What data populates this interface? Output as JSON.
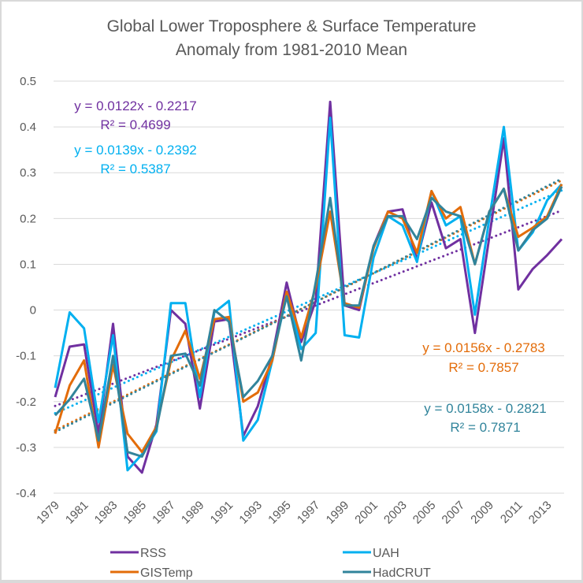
{
  "chart_data": {
    "type": "line",
    "title": [
      "Global Lower Troposphere & Surface Temperature",
      "Anomaly from 1981-2010 Mean"
    ],
    "xlabel": "",
    "ylabel": "",
    "ylim": [
      -0.4,
      0.5
    ],
    "yticks": [
      0.5,
      0.4,
      0.3,
      0.2,
      0.1,
      0,
      -0.1,
      -0.2,
      -0.3,
      -0.4
    ],
    "ytick_labels": [
      "0.5",
      "0.4",
      "0.3",
      "0.2",
      "0.1",
      "0",
      "-0.1",
      "-0.2",
      "-0.3",
      "-0.4"
    ],
    "x": [
      1979,
      1980,
      1981,
      1982,
      1983,
      1984,
      1985,
      1986,
      1987,
      1988,
      1989,
      1990,
      1991,
      1992,
      1993,
      1994,
      1995,
      1996,
      1997,
      1998,
      1999,
      2000,
      2001,
      2002,
      2003,
      2004,
      2005,
      2006,
      2007,
      2008,
      2009,
      2010,
      2011,
      2012,
      2013,
      2014
    ],
    "xtick_labels": [
      "1979",
      "1981",
      "1983",
      "1985",
      "1987",
      "1989",
      "1991",
      "1993",
      "1995",
      "1997",
      "1999",
      "2001",
      "2003",
      "2005",
      "2007",
      "2009",
      "2011",
      "2013"
    ],
    "grid": true,
    "legend_position": "bottom",
    "series": [
      {
        "name": "RSS",
        "color": "#7030a0",
        "values": [
          -0.19,
          -0.08,
          -0.075,
          -0.27,
          -0.03,
          -0.32,
          -0.355,
          -0.25,
          0.0,
          -0.03,
          -0.215,
          -0.025,
          -0.02,
          -0.275,
          -0.21,
          -0.1,
          0.06,
          -0.07,
          0.02,
          0.455,
          0.01,
          0.0,
          0.14,
          0.215,
          0.22,
          0.11,
          0.235,
          0.135,
          0.155,
          -0.05,
          0.16,
          0.375,
          0.045,
          0.09,
          0.12,
          0.155
        ],
        "trendline": {
          "slope": 0.0122,
          "intercept": -0.2217,
          "r2": 0.4699,
          "equation": "y = 0.0122x - 0.2217",
          "r2_label": "R² = 0.4699"
        }
      },
      {
        "name": "UAH",
        "color": "#00b0f0",
        "values": [
          -0.17,
          -0.005,
          -0.04,
          -0.245,
          -0.055,
          -0.35,
          -0.315,
          -0.265,
          0.015,
          0.015,
          -0.19,
          -0.005,
          0.02,
          -0.285,
          -0.24,
          -0.11,
          0.035,
          -0.085,
          -0.05,
          0.42,
          -0.055,
          -0.06,
          0.115,
          0.205,
          0.185,
          0.105,
          0.26,
          0.185,
          0.205,
          -0.01,
          0.2,
          0.4,
          0.13,
          0.17,
          0.24,
          0.275
        ],
        "trendline": {
          "slope": 0.0139,
          "intercept": -0.2392,
          "r2": 0.5387,
          "equation": "y = 0.0139x - 0.2392",
          "r2_label": "R² = 0.5387"
        }
      },
      {
        "name": "GISTemp",
        "color": "#e36c09",
        "values": [
          -0.27,
          -0.165,
          -0.11,
          -0.3,
          -0.12,
          -0.27,
          -0.31,
          -0.255,
          -0.11,
          -0.045,
          -0.15,
          -0.02,
          -0.015,
          -0.2,
          -0.18,
          -0.11,
          0.04,
          -0.06,
          0.05,
          0.215,
          0.015,
          0.005,
          0.135,
          0.215,
          0.2,
          0.125,
          0.26,
          0.2,
          0.225,
          0.1,
          0.215,
          0.265,
          0.16,
          0.18,
          0.205,
          0.275
        ],
        "trendline": {
          "slope": 0.0156,
          "intercept": -0.2783,
          "r2": 0.7857,
          "equation": "y = 0.0156x - 0.2783",
          "r2_label": "R² = 0.7857"
        }
      },
      {
        "name": "HadCRUT",
        "color": "#31849b",
        "values": [
          -0.23,
          -0.195,
          -0.15,
          -0.285,
          -0.1,
          -0.31,
          -0.32,
          -0.26,
          -0.1,
          -0.095,
          -0.165,
          0.0,
          -0.025,
          -0.19,
          -0.155,
          -0.1,
          0.03,
          -0.11,
          0.06,
          0.245,
          0.01,
          0.01,
          0.14,
          0.205,
          0.205,
          0.155,
          0.245,
          0.215,
          0.205,
          0.1,
          0.215,
          0.265,
          0.13,
          0.175,
          0.2,
          0.27
        ],
        "trendline": {
          "slope": 0.0158,
          "intercept": -0.2821,
          "r2": 0.7871,
          "equation": "y = 0.0158x - 0.2821",
          "r2_label": "R² = 0.7871"
        }
      }
    ]
  }
}
